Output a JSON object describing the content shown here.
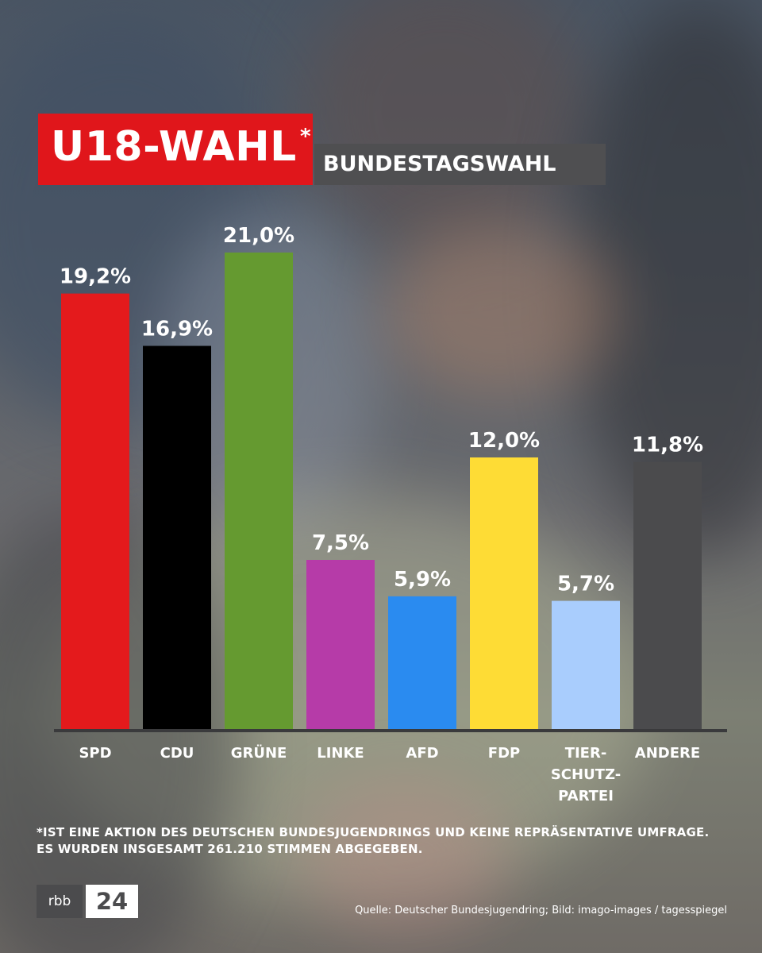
{
  "header": {
    "title": "U18-WAHL",
    "asterisk": "*",
    "subtitle": "BUNDESTAGSWAHL"
  },
  "chart_data": {
    "type": "bar",
    "categories": [
      "SPD",
      "CDU",
      "GRÜNE",
      "LINKE",
      "AFD",
      "FDP",
      "TIER-\nSCHUTZ-\nPARTEI",
      "ANDERE"
    ],
    "values": [
      19.2,
      16.9,
      21.0,
      7.5,
      5.9,
      12.0,
      5.7,
      11.8
    ],
    "data_labels": [
      "19,2%",
      "16,9%",
      "21,0%",
      "7,5%",
      "5,9%",
      "12,0%",
      "5,7%",
      "11,8%"
    ],
    "colors": [
      "#e41a1c",
      "#000000",
      "#659a30",
      "#b63ba8",
      "#2a8bf0",
      "#fedc35",
      "#a9cdfd",
      "#4b4b4d"
    ],
    "ylim": [
      0,
      21.0
    ],
    "grid": false,
    "legend": "none"
  },
  "footnote": {
    "line1": "*IST EINE AKTION DES DEUTSCHEN BUNDESJUGENDRINGS UND KEINE REPRÄSENTATIVE UMFRAGE.",
    "line2": "ES WURDEN INSGESAMT 261.210 STIMMEN ABGEGEBEN."
  },
  "logo": {
    "part1": "rbb",
    "part2": "24"
  },
  "source": "Quelle: Deutscher Bundesjugendring; Bild: imago-images / tagesspiegel"
}
